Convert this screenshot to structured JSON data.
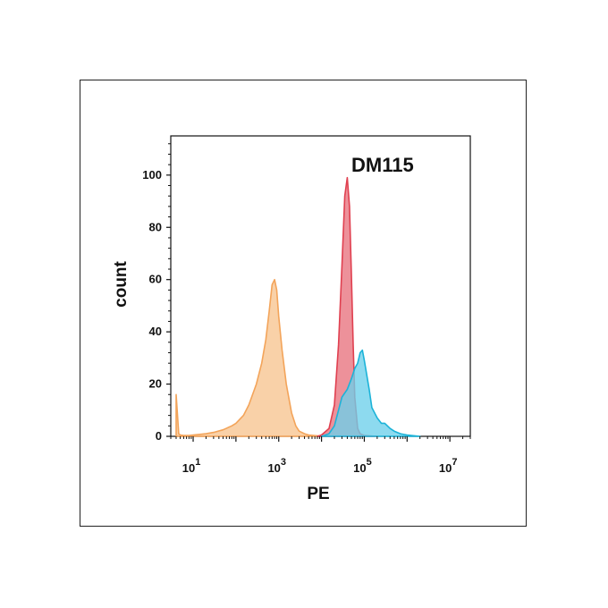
{
  "chart_data": {
    "type": "area",
    "title": "DM115",
    "xlabel": "PE",
    "ylabel": "count",
    "x_scale": "log10",
    "xlim": [
      3,
      30000000
    ],
    "ylim": [
      0,
      115
    ],
    "y_ticks": [
      0,
      20,
      40,
      60,
      80,
      100
    ],
    "x_ticks": [
      {
        "value": 10,
        "base": "10",
        "exp": "1"
      },
      {
        "value": 1000,
        "base": "10",
        "exp": "3"
      },
      {
        "value": 100000,
        "base": "10",
        "exp": "5"
      },
      {
        "value": 10000000,
        "base": "10",
        "exp": "7"
      }
    ],
    "grid": false,
    "legend": "none",
    "series": [
      {
        "color": "#f3a45a",
        "fill": "#f7c48f",
        "x": [
          4,
          4.6,
          5,
          6,
          8,
          10,
          15,
          20,
          30,
          50,
          80,
          100,
          150,
          200,
          300,
          400,
          500,
          600,
          700,
          800,
          900,
          1000,
          1200,
          1500,
          2000,
          2500,
          3000,
          4000,
          5000,
          8000,
          12000
        ],
        "y": [
          16,
          1,
          0.5,
          0.3,
          0.3,
          0.5,
          0.8,
          1,
          1.5,
          2.5,
          4,
          5,
          8,
          12,
          20,
          28,
          37,
          48,
          58,
          60,
          56,
          46,
          33,
          20,
          9,
          4,
          2,
          1,
          0.5,
          0.2,
          0
        ]
      },
      {
        "color": "#e04050",
        "fill": "#e8727e",
        "x": [
          8000,
          10000,
          15000,
          20000,
          25000,
          30000,
          35000,
          40000,
          45000,
          50000,
          55000,
          60000,
          70000,
          80000,
          100000,
          150000,
          200000
        ],
        "y": [
          0,
          0.5,
          3,
          12,
          35,
          65,
          92,
          99,
          88,
          62,
          35,
          15,
          3,
          1,
          0.3,
          0.1,
          0
        ]
      },
      {
        "color": "#1cb3d8",
        "fill": "#6dd0ea",
        "x": [
          10000,
          15000,
          20000,
          25000,
          30000,
          40000,
          50000,
          60000,
          70000,
          80000,
          90000,
          100000,
          130000,
          150000,
          200000,
          250000,
          300000,
          400000,
          500000,
          700000,
          1000000,
          1500000,
          2000000
        ],
        "y": [
          0,
          1,
          4,
          10,
          15,
          18,
          22,
          26,
          28,
          32,
          33,
          29,
          18,
          11,
          7,
          5,
          5,
          3,
          2,
          1,
          0.5,
          0.2,
          0
        ]
      }
    ]
  }
}
